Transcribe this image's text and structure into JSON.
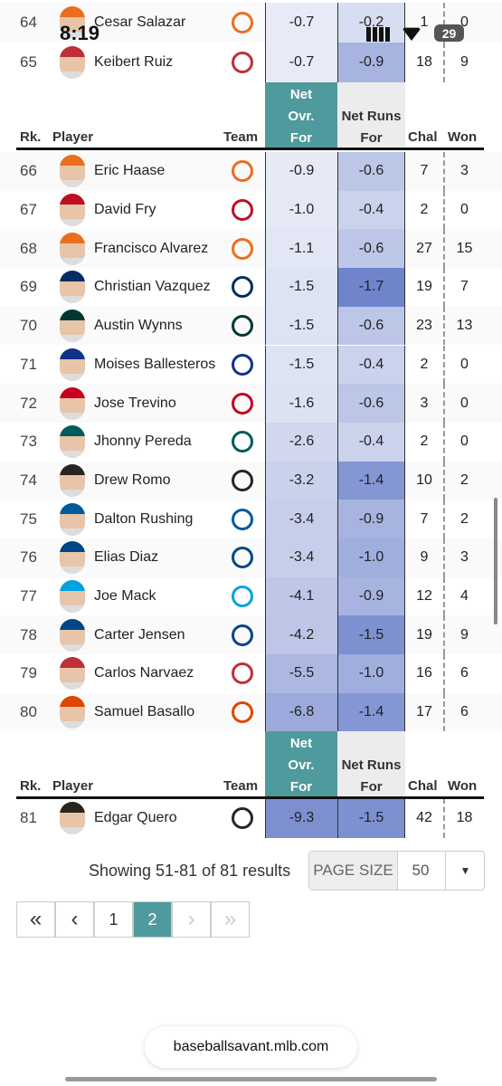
{
  "status_bar": {
    "time": "8:19",
    "battery": "29"
  },
  "table": {
    "header": [
      "Rk.",
      "Player",
      "Team",
      "Net Ovr. For",
      "Net Runs For",
      "Chal",
      "Won"
    ],
    "rows": [
      [
        64,
        "Cesar Salazar",
        "-0.7",
        "-0.2",
        1,
        0
      ],
      [
        65,
        "Keibert Ruiz",
        "-0.7",
        "-0.9",
        18,
        9
      ],
      [
        66,
        "Eric Haase",
        "-0.9",
        "-0.6",
        7,
        3
      ],
      [
        67,
        "David Fry",
        "-1.0",
        "-0.4",
        2,
        0
      ],
      [
        68,
        "Francisco Alvarez",
        "-1.1",
        "-0.6",
        27,
        15
      ],
      [
        69,
        "Christian Vazquez",
        "-1.5",
        "-1.7",
        19,
        7
      ],
      [
        70,
        "Austin Wynns",
        "-1.5",
        "-0.6",
        23,
        13
      ],
      [
        71,
        "Moises Ballesteros",
        "-1.5",
        "-0.4",
        2,
        0
      ],
      [
        72,
        "Jose Trevino",
        "-1.6",
        "-0.6",
        3,
        0
      ],
      [
        73,
        "Jhonny Pereda",
        "-2.6",
        "-0.4",
        2,
        0
      ],
      [
        74,
        "Drew Romo",
        "-3.2",
        "-1.4",
        10,
        2
      ],
      [
        75,
        "Dalton Rushing",
        "-3.4",
        "-0.9",
        7,
        2
      ],
      [
        76,
        "Elias Diaz",
        "-3.4",
        "-1.0",
        9,
        3
      ],
      [
        77,
        "Joe Mack",
        "-4.1",
        "-0.9",
        12,
        4
      ],
      [
        78,
        "Carter Jensen",
        "-4.2",
        "-1.5",
        19,
        9
      ],
      [
        79,
        "Carlos Narvaez",
        "-5.5",
        "-1.0",
        16,
        6
      ],
      [
        80,
        "Samuel Basallo",
        "-6.8",
        "-1.4",
        17,
        6
      ],
      [
        81,
        "Edgar Quero",
        "-9.3",
        "-1.5",
        42,
        18
      ]
    ]
  },
  "footer": {
    "summary": "Showing 51-81 of 81 results",
    "page_size_label": "PAGE SIZE",
    "page_size": "50",
    "dropdown": "▼",
    "pagination": [
      "«",
      "‹",
      "1",
      "2",
      "›",
      "»"
    ],
    "active_page": "2"
  },
  "browser": {
    "url": "baseballsavant.mlb.com"
  }
}
